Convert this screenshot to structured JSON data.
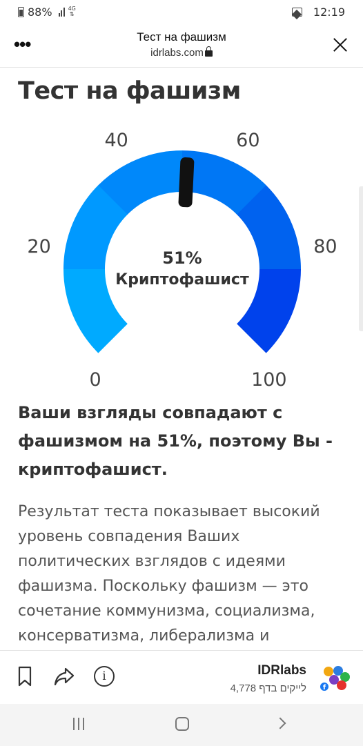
{
  "status_bar": {
    "battery": "88%",
    "network": "4G",
    "time": "12:19"
  },
  "browser": {
    "menu_icon": "more-dots-icon",
    "title": "Тест на фашизм",
    "url": "idrlabs.com",
    "close_icon": "close-icon"
  },
  "page": {
    "title": "Тест на фашизм",
    "gauge": {
      "tick_labels": [
        "0",
        "20",
        "40",
        "60",
        "80",
        "100"
      ],
      "value": 51,
      "value_label": "51%",
      "category": "Криптофашист",
      "colors": [
        "#00aaff",
        "#0099ff",
        "#0088fa",
        "#0077f5",
        "#0062ef",
        "#0042ec"
      ],
      "needle_color": "#111111"
    },
    "result_heading": "Ваши взгляды совпадают с фашизмом на 51%, поэтому Вы - криптофашист.",
    "result_text": "Результат теста показывает высокий уровень совпадения Ваших политических взглядов с идеями фашизма. Поскольку фашизм — это сочетание коммунизма, социализма, консерватизма, либерализма и"
  },
  "toolbar": {
    "bookmark_icon": "bookmark-icon",
    "share_icon": "share-icon",
    "info_icon": "info-icon",
    "site_name": "IDRlabs",
    "likes_count": "4,778",
    "likes_text": "לייקים בדף"
  },
  "navbar": {
    "recent_icon": "recent-apps-icon",
    "home_icon": "home-icon",
    "back_icon": "back-icon"
  }
}
